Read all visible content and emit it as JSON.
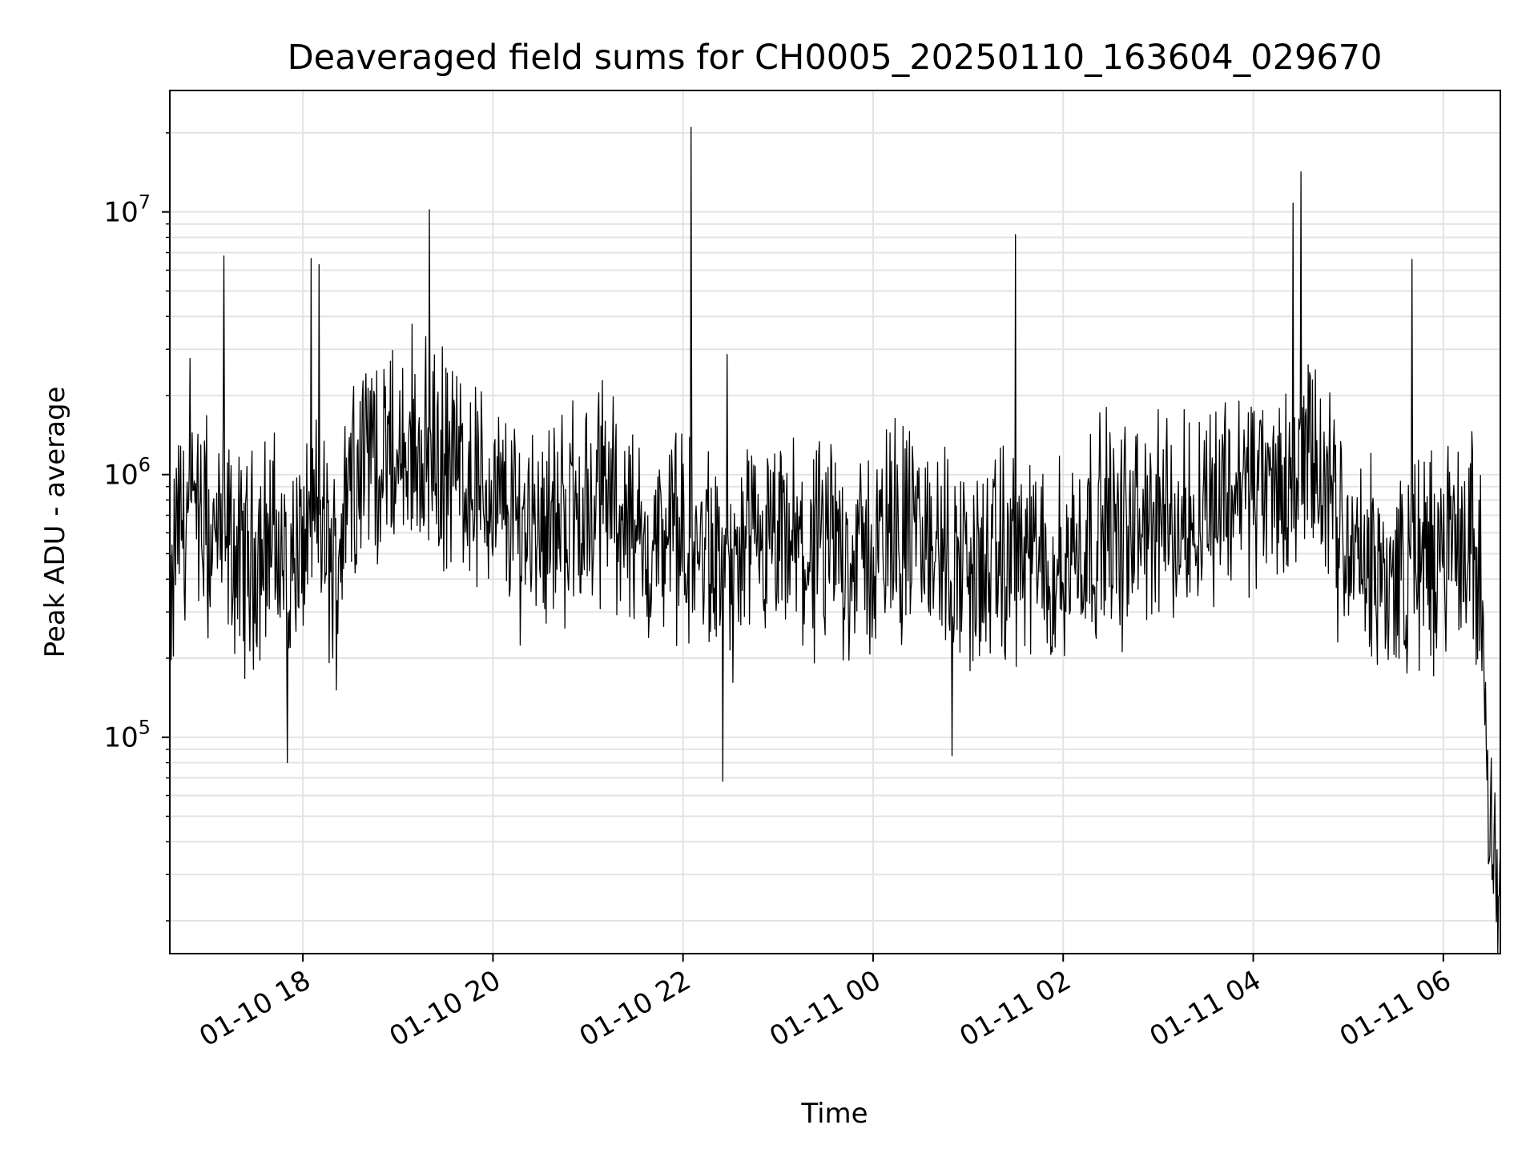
{
  "chart_data": {
    "type": "line",
    "title": "Deaveraged field sums for CH0005_20250110_163604_029670",
    "xlabel": "Time",
    "ylabel": "Peak ADU - average",
    "y_scale": "log",
    "ylim": [
      15000,
      29000000
    ],
    "xlim": [
      "2025-01-10 16:36",
      "2025-01-11 06:36"
    ],
    "grid": true,
    "line_color": "#000000",
    "x_ticks": [
      {
        "label": "01-10 18",
        "time": "2025-01-10 18:00"
      },
      {
        "label": "01-10 20",
        "time": "2025-01-10 20:00"
      },
      {
        "label": "01-10 22",
        "time": "2025-01-10 22:00"
      },
      {
        "label": "01-11 00",
        "time": "2025-01-11 00:00"
      },
      {
        "label": "01-11 02",
        "time": "2025-01-11 02:00"
      },
      {
        "label": "01-11 04",
        "time": "2025-01-11 04:00"
      },
      {
        "label": "01-11 06",
        "time": "2025-01-11 06:00"
      }
    ],
    "y_ticks": [
      {
        "base": "10",
        "exp": "5",
        "value": 100000
      },
      {
        "base": "10",
        "exp": "6",
        "value": 1000000
      },
      {
        "base": "10",
        "exp": "7",
        "value": 10000000
      }
    ],
    "series": [
      {
        "x": [
          "2025-01-10 16:36",
          "2025-01-10 16:40",
          "2025-01-10 16:50",
          "2025-01-10 17:00",
          "2025-01-10 17:10",
          "2025-01-10 17:20",
          "2025-01-10 17:30",
          "2025-01-10 17:40",
          "2025-01-10 17:50",
          "2025-01-10 18:00",
          "2025-01-10 18:10",
          "2025-01-10 18:20",
          "2025-01-10 18:30",
          "2025-01-10 18:40",
          "2025-01-10 18:50",
          "2025-01-10 19:00",
          "2025-01-10 19:10",
          "2025-01-10 19:20",
          "2025-01-10 19:30",
          "2025-01-10 19:40",
          "2025-01-10 19:50",
          "2025-01-10 20:00",
          "2025-01-10 20:10",
          "2025-01-10 20:20",
          "2025-01-10 20:30",
          "2025-01-10 20:40",
          "2025-01-10 20:50",
          "2025-01-10 21:00",
          "2025-01-10 21:10",
          "2025-01-10 21:20",
          "2025-01-10 21:30",
          "2025-01-10 21:40",
          "2025-01-10 21:50",
          "2025-01-10 22:00",
          "2025-01-10 22:10",
          "2025-01-10 22:20",
          "2025-01-10 22:30",
          "2025-01-10 22:40",
          "2025-01-10 22:50",
          "2025-01-10 23:00",
          "2025-01-10 23:10",
          "2025-01-10 23:20",
          "2025-01-10 23:30",
          "2025-01-10 23:40",
          "2025-01-10 23:50",
          "2025-01-11 00:00",
          "2025-01-11 00:10",
          "2025-01-11 00:20",
          "2025-01-11 00:30",
          "2025-01-11 00:40",
          "2025-01-11 00:50",
          "2025-01-11 01:00",
          "2025-01-11 01:10",
          "2025-01-11 01:20",
          "2025-01-11 01:30",
          "2025-01-11 01:40",
          "2025-01-11 01:50",
          "2025-01-11 02:00",
          "2025-01-11 02:10",
          "2025-01-11 02:20",
          "2025-01-11 02:30",
          "2025-01-11 02:40",
          "2025-01-11 02:50",
          "2025-01-11 03:00",
          "2025-01-11 03:10",
          "2025-01-11 03:20",
          "2025-01-11 03:30",
          "2025-01-11 03:40",
          "2025-01-11 03:50",
          "2025-01-11 04:00",
          "2025-01-11 04:10",
          "2025-01-11 04:20",
          "2025-01-11 04:30",
          "2025-01-11 04:40",
          "2025-01-11 04:50",
          "2025-01-11 05:00",
          "2025-01-11 05:10",
          "2025-01-11 05:20",
          "2025-01-11 05:30",
          "2025-01-11 05:40",
          "2025-01-11 05:50",
          "2025-01-11 06:00",
          "2025-01-11 06:10",
          "2025-01-11 06:20",
          "2025-01-11 06:25",
          "2025-01-11 06:30",
          "2025-01-11 06:36"
        ],
        "y": [
          180000,
          650000,
          700000,
          550000,
          600000,
          450000,
          500000,
          600000,
          400000,
          550000,
          700000,
          400000,
          1100000,
          1300000,
          1200000,
          1000000,
          1250000,
          1200000,
          1100000,
          1050000,
          900000,
          800000,
          700000,
          650000,
          700000,
          650000,
          750000,
          700000,
          900000,
          800000,
          550000,
          500000,
          600000,
          550000,
          500000,
          450000,
          400000,
          450000,
          500000,
          500000,
          520000,
          480000,
          500000,
          550000,
          480000,
          500000,
          600000,
          620000,
          580000,
          520000,
          480000,
          450000,
          420000,
          460000,
          500000,
          480000,
          420000,
          450000,
          550000,
          620000,
          600000,
          580000,
          650000,
          700000,
          600000,
          750000,
          800000,
          850000,
          900000,
          950000,
          850000,
          900000,
          1000000,
          1100000,
          700000,
          500000,
          450000,
          420000,
          400000,
          450000,
          480000,
          500000,
          520000,
          550000,
          220000,
          55000,
          25000
        ],
        "mean_level_note": "",
        "peaks": [
          {
            "time": "2025-01-10 17:10",
            "y": 6800000
          },
          {
            "time": "2025-01-10 18:10",
            "y": 6300000
          },
          {
            "time": "2025-01-10 19:20",
            "y": 10200000
          },
          {
            "time": "2025-01-10 22:05",
            "y": 21000000
          },
          {
            "time": "2025-01-11 01:30",
            "y": 8200000
          },
          {
            "time": "2025-01-11 04:30",
            "y": 14200000
          },
          {
            "time": "2025-01-11 04:25",
            "y": 10800000
          },
          {
            "time": "2025-01-11 05:40",
            "y": 6600000
          }
        ],
        "troughs": [
          {
            "time": "2025-01-10 17:50",
            "y": 80000
          },
          {
            "time": "2025-01-10 22:25",
            "y": 68000
          },
          {
            "time": "2025-01-11 00:50",
            "y": 85000
          },
          {
            "time": "2025-01-11 06:33",
            "y": 29000
          }
        ]
      }
    ]
  }
}
